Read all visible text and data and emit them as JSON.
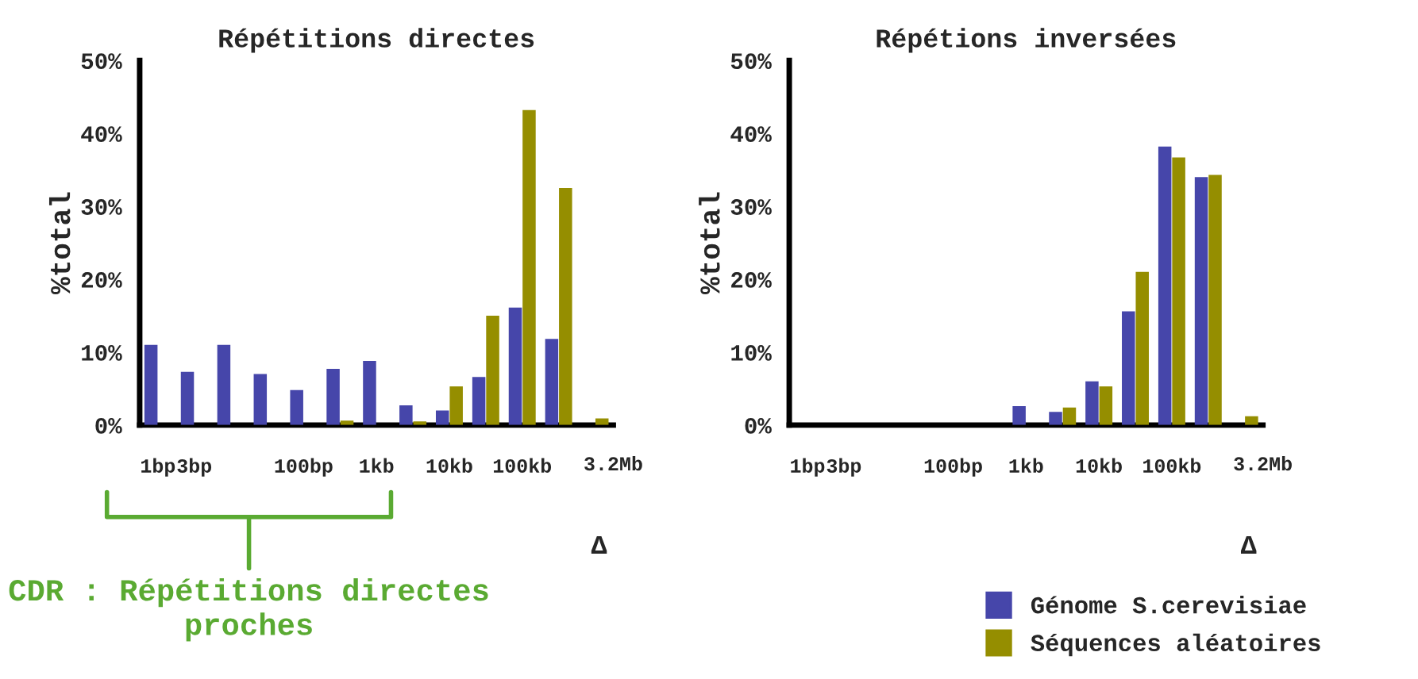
{
  "chart_data": [
    {
      "type": "bar",
      "title": "Répétitions directes",
      "xlabel": "Δ",
      "ylabel": "%total",
      "categories": [
        "1bp",
        "3bp",
        null,
        null,
        "100bp",
        null,
        "1kb",
        null,
        "10kb",
        null,
        "100kb",
        null,
        null
      ],
      "series": [
        {
          "color": "#4646aa",
          "values": [
            11.0,
            7.3,
            11.0,
            7.0,
            4.8,
            7.7,
            8.8,
            2.7,
            2.0,
            6.6,
            16.1,
            11.8,
            0
          ]
        },
        {
          "color": "#958e00",
          "values": [
            0,
            0,
            0,
            0,
            0,
            0.6,
            0,
            0.5,
            5.3,
            15.0,
            43.2,
            32.5,
            0.9
          ]
        }
      ],
      "ylim": [
        0,
        50
      ],
      "yticks": [
        {
          "value": 0,
          "label": "0%"
        },
        {
          "value": 10,
          "label": "10%"
        },
        {
          "value": 20,
          "label": "20%"
        },
        {
          "value": 30,
          "label": "30%"
        },
        {
          "value": 40,
          "label": "40%"
        },
        {
          "value": 50,
          "label": "50%"
        }
      ],
      "annotations": [
        "3.2Mb",
        "CDR : Répétitions directes proches"
      ],
      "grid": false,
      "legend": false
    },
    {
      "type": "bar",
      "title": "Répétions inversées",
      "xlabel": "Δ",
      "ylabel": "%total",
      "categories": [
        "1bp",
        "3bp",
        null,
        null,
        "100bp",
        null,
        "1kb",
        null,
        "10kb",
        null,
        "100kb",
        null,
        null
      ],
      "series": [
        {
          "name": "Génome S.cerevisiae",
          "color": "#4646aa",
          "values": [
            0,
            0,
            0,
            0,
            0,
            0,
            2.6,
            1.8,
            6.0,
            15.6,
            38.2,
            34.0,
            0
          ]
        },
        {
          "name": "Séquences aléatoires",
          "color": "#958e00",
          "values": [
            0,
            0,
            0,
            0,
            0,
            0,
            0,
            2.4,
            5.3,
            21.0,
            36.7,
            34.3,
            1.2
          ]
        }
      ],
      "ylim": [
        0,
        50
      ],
      "yticks": [
        {
          "value": 0,
          "label": "0%"
        },
        {
          "value": 10,
          "label": "10%"
        },
        {
          "value": 20,
          "label": "20%"
        },
        {
          "value": 30,
          "label": "30%"
        },
        {
          "value": 40,
          "label": "40%"
        },
        {
          "value": 50,
          "label": "50%"
        }
      ],
      "annotations": [
        "3.2Mb"
      ],
      "grid": false,
      "legend": "bottom right"
    }
  ]
}
